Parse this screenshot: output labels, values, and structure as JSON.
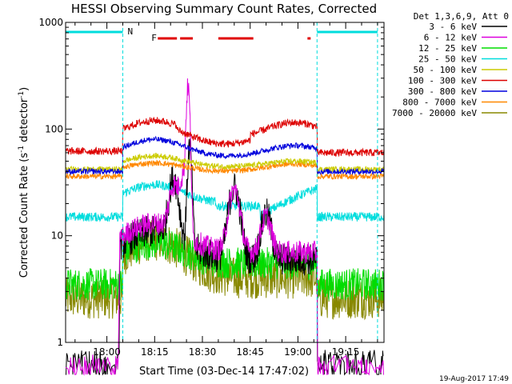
{
  "chart_data": {
    "type": "line",
    "title": "HESSI Observing Summary Count Rates, Corrected",
    "xlabel": "Start Time (03-Dec-14 17:47:02)",
    "ylabel_main": "Corrected Count Rate (s",
    "ylabel_sup1": "-1",
    "ylabel_mid": " detector",
    "ylabel_sup2": "-1",
    "ylabel_end": ")",
    "yscale": "log",
    "ylim": [
      1,
      1000
    ],
    "xlim": [
      "17:47:02",
      "19:27:02"
    ],
    "x_ticks": [
      "18:00",
      "18:15",
      "18:30",
      "18:45",
      "19:00",
      "19:15"
    ],
    "y_ticks": [
      "1",
      "10",
      "100",
      "1000"
    ],
    "grid": false,
    "legend_title": "Det 1,3,6,9, Att 0",
    "legend_position": "right",
    "timestamp": "19-Aug-2017 17:49",
    "flags": [
      {
        "label": "N",
        "color": "#00dddd",
        "intervals": [
          [
            "17:47",
            "18:05"
          ],
          [
            "19:06",
            "19:25"
          ]
        ]
      },
      {
        "label": "F",
        "color": "#e00000",
        "intervals": [
          [
            "18:16",
            "18:22"
          ],
          [
            "18:23",
            "18:27"
          ],
          [
            "18:35",
            "18:46"
          ],
          [
            "19:03",
            "19:04"
          ]
        ]
      }
    ],
    "night_markers": [
      "18:05",
      "19:06",
      "19:25"
    ],
    "series": [
      {
        "name": "3 - 6 keV",
        "color": "#000000",
        "values_summary": "~1 before 18:04 and after 19:06; ~8-30 during day with peaks near 18:25 and 18:40"
      },
      {
        "name": "6 - 12 keV",
        "color": "#dd00dd",
        "values_summary": "peak ~250 near 18:25; ~6-30 otherwise during day"
      },
      {
        "name": "12 - 25 keV",
        "color": "#00dd00",
        "values_summary": "~3.5 background; ~6-9 during day"
      },
      {
        "name": "25 - 50 keV",
        "color": "#00dddd",
        "values_summary": "~15-30"
      },
      {
        "name": "50 - 100 keV",
        "color": "#cccc00",
        "values_summary": "~40-55"
      },
      {
        "name": "100 - 300 keV",
        "color": "#dd0000",
        "values_summary": "~60-120"
      },
      {
        "name": "300 - 800 keV",
        "color": "#0000dd",
        "values_summary": "~40-75"
      },
      {
        "name": "800 - 7000 keV",
        "color": "#ff8800",
        "values_summary": "~35-50"
      },
      {
        "name": "7000 - 20000 keV",
        "color": "#888800",
        "values_summary": "~2.5-9"
      }
    ]
  }
}
